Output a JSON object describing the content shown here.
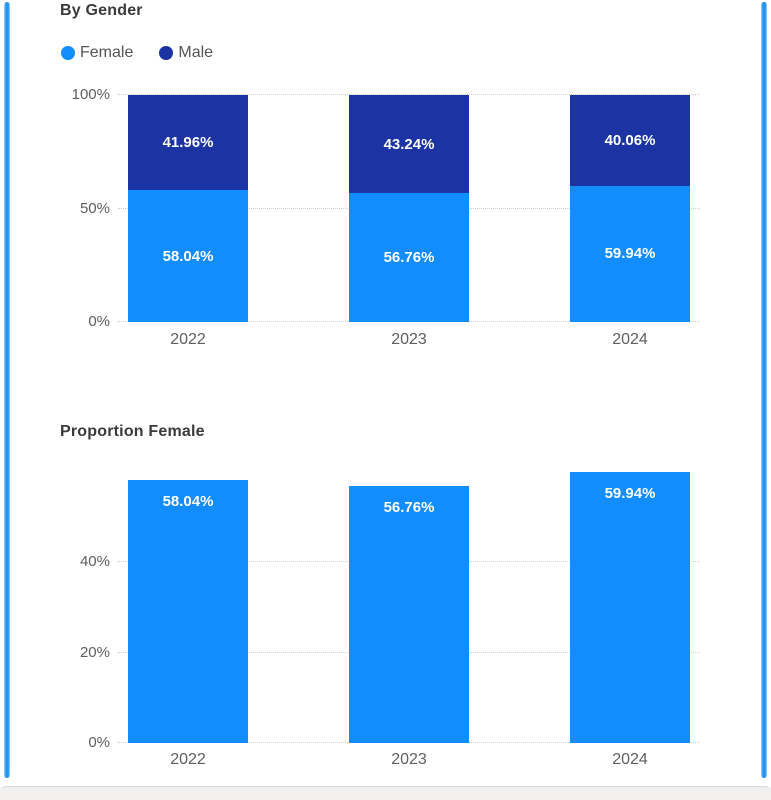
{
  "page": {
    "accent_color": "#2B99F2"
  },
  "chart_data": [
    {
      "type": "bar",
      "subtype": "stacked-100-percent-column",
      "title": "By Gender",
      "categories": [
        "2022",
        "2023",
        "2024"
      ],
      "series": [
        {
          "name": "Female",
          "color": "#118DFF",
          "values": [
            58.04,
            56.76,
            59.94
          ],
          "labels": [
            "58.04%",
            "56.76%",
            "59.94%"
          ]
        },
        {
          "name": "Male",
          "color": "#1C33A4",
          "values": [
            41.96,
            43.24,
            40.06
          ],
          "labels": [
            "41.96%",
            "43.24%",
            "40.06%"
          ]
        }
      ],
      "legend": {
        "position": "top",
        "entries": [
          "Female",
          "Male"
        ]
      },
      "xlabel": "",
      "ylabel": "",
      "y_ticks": [
        {
          "label": "0%",
          "value": 0
        },
        {
          "label": "50%",
          "value": 50
        },
        {
          "label": "100%",
          "value": 100
        }
      ],
      "ylim": [
        0,
        100
      ],
      "grid": "horizontal-dotted"
    },
    {
      "type": "bar",
      "subtype": "column",
      "title": "Proportion Female",
      "categories": [
        "2022",
        "2023",
        "2024"
      ],
      "values": [
        58.04,
        56.76,
        59.94
      ],
      "labels": [
        "58.04%",
        "56.76%",
        "59.94%"
      ],
      "bar_color": "#118DFF",
      "legend": {
        "position": "none"
      },
      "xlabel": "",
      "ylabel": "",
      "y_ticks": [
        {
          "label": "0%",
          "value": 0
        },
        {
          "label": "20%",
          "value": 20
        },
        {
          "label": "40%",
          "value": 40
        }
      ],
      "ylim": [
        0,
        61
      ],
      "grid": "horizontal-dotted"
    }
  ]
}
